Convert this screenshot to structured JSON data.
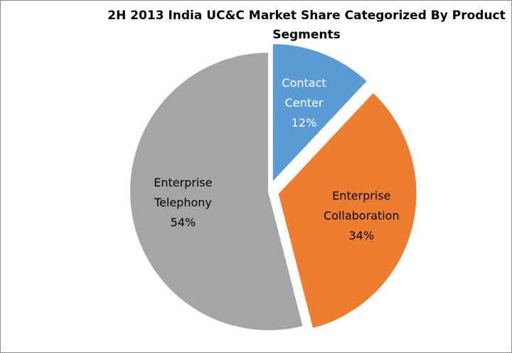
{
  "chart_data": {
    "type": "pie",
    "title": "2H 2013 India  UC&C Market Share Categorized By Product Segments",
    "slices": [
      {
        "label_lines": [
          "Contact",
          "Center"
        ],
        "value": 12,
        "value_label": "12%",
        "color": "#5b9bd5",
        "label_color": "#ffffff",
        "exploded": true
      },
      {
        "label_lines": [
          "Enterprise",
          "Collaboration"
        ],
        "value": 34,
        "value_label": "34%",
        "color": "#ed7d31",
        "label_color": "#000000",
        "exploded": true
      },
      {
        "label_lines": [
          "Enterprise",
          "Telephony"
        ],
        "value": 54,
        "value_label": "54%",
        "color": "#a5a5a5",
        "label_color": "#000000",
        "exploded": false
      }
    ],
    "legend": "none"
  }
}
